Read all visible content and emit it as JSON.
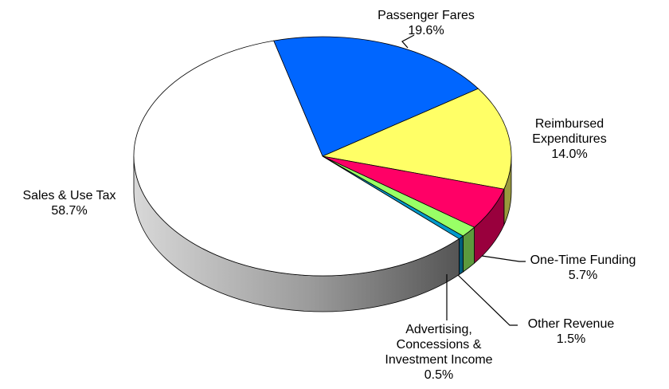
{
  "chart_data": {
    "type": "pie",
    "title": "",
    "slices": [
      {
        "label": "Passenger Fares",
        "value": 19.6,
        "display_value": "19.6%",
        "color": "#0066FF",
        "label_lines": [
          "Passenger Fares",
          "19.6%"
        ]
      },
      {
        "label": "Reimbursed Expenditures",
        "value": 14.0,
        "display_value": "14.0%",
        "color": "#FFFF66",
        "label_lines": [
          "Reimbursed",
          "Expenditures",
          "14.0%"
        ]
      },
      {
        "label": "One-Time Funding",
        "value": 5.7,
        "display_value": "5.7%",
        "color": "#FF0066",
        "label_lines": [
          "One-Time Funding",
          "5.7%"
        ]
      },
      {
        "label": "Other Revenue",
        "value": 1.5,
        "display_value": "1.5%",
        "color": "#99FF66",
        "label_lines": [
          "Other Revenue",
          "1.5%"
        ]
      },
      {
        "label": "Advertising, Concessions & Investment Income",
        "value": 0.5,
        "display_value": "0.5%",
        "color": "#0099CC",
        "label_lines": [
          "Advertising,",
          "Concessions &",
          "Investment Income",
          "0.5%"
        ]
      },
      {
        "label": "Sales & Use Tax",
        "value": 58.7,
        "display_value": "58.7%",
        "color": "#FFFFFF",
        "label_lines": [
          "Sales & Use Tax",
          "58.7%"
        ]
      }
    ],
    "style": "3d-tilted",
    "legend": "none"
  }
}
